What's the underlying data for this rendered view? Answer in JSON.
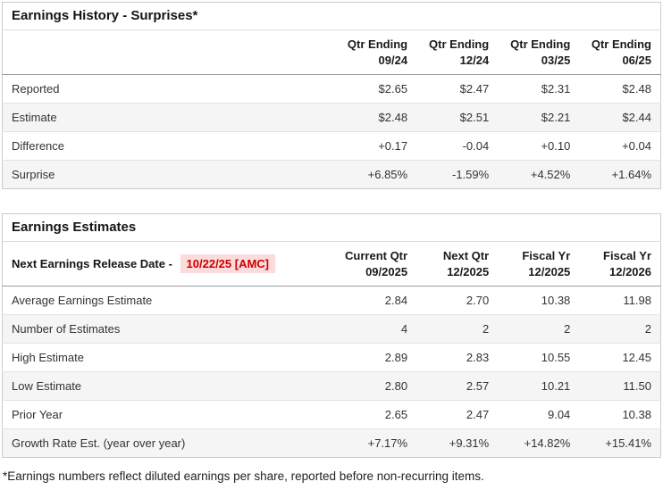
{
  "colors": {
    "positive": "#1d8a70",
    "negative": "#cb3048",
    "release_date_text": "#cc0000",
    "release_date_bg": "#fbdbdb"
  },
  "surprises": {
    "title": "Earnings History - Surprises*",
    "columns": [
      {
        "line1": "Qtr Ending",
        "line2": "09/24"
      },
      {
        "line1": "Qtr Ending",
        "line2": "12/24"
      },
      {
        "line1": "Qtr Ending",
        "line2": "03/25"
      },
      {
        "line1": "Qtr Ending",
        "line2": "06/25"
      }
    ],
    "rows": [
      {
        "label": "Reported",
        "values": [
          "$2.65",
          "$2.47",
          "$2.31",
          "$2.48"
        ]
      },
      {
        "label": "Estimate",
        "values": [
          "$2.48",
          "$2.51",
          "$2.21",
          "$2.44"
        ]
      },
      {
        "label": "Difference",
        "values": [
          "+0.17",
          "-0.04",
          "+0.10",
          "+0.04"
        ],
        "tones": [
          "pos",
          "neg",
          "pos",
          "pos"
        ]
      },
      {
        "label": "Surprise",
        "values": [
          "+6.85%",
          "-1.59%",
          "+4.52%",
          "+1.64%"
        ],
        "tones": [
          "pos",
          "neg",
          "pos",
          "pos"
        ]
      }
    ]
  },
  "estimates": {
    "title": "Earnings Estimates",
    "release_label": "Next Earnings Release Date -",
    "release_date": "10/22/25 [AMC]",
    "columns": [
      {
        "line1": "Current Qtr",
        "line2": "09/2025"
      },
      {
        "line1": "Next Qtr",
        "line2": "12/2025"
      },
      {
        "line1": "Fiscal Yr",
        "line2": "12/2025"
      },
      {
        "line1": "Fiscal Yr",
        "line2": "12/2026"
      }
    ],
    "rows": [
      {
        "label": "Average Earnings Estimate",
        "values": [
          "2.84",
          "2.70",
          "10.38",
          "11.98"
        ]
      },
      {
        "label": "Number of Estimates",
        "values": [
          "4",
          "2",
          "2",
          "2"
        ]
      },
      {
        "label": "High Estimate",
        "values": [
          "2.89",
          "2.83",
          "10.55",
          "12.45"
        ]
      },
      {
        "label": "Low Estimate",
        "values": [
          "2.80",
          "2.57",
          "10.21",
          "11.50"
        ]
      },
      {
        "label": "Prior Year",
        "values": [
          "2.65",
          "2.47",
          "9.04",
          "10.38"
        ]
      },
      {
        "label": "Growth Rate Est. (year over year)",
        "values": [
          "+7.17%",
          "+9.31%",
          "+14.82%",
          "+15.41%"
        ],
        "tones": [
          "pos",
          "pos",
          "pos",
          "pos"
        ]
      }
    ]
  },
  "footnote": "*Earnings numbers reflect diluted earnings per share, reported before non-recurring items."
}
